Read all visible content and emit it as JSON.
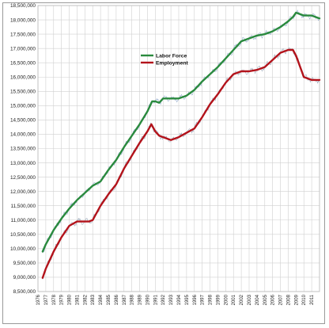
{
  "chart_data": {
    "type": "line",
    "title": "",
    "xlabel": "",
    "ylabel": "",
    "xlim": [
      1976,
      2012
    ],
    "ylim": [
      8500000,
      18500000
    ],
    "y_ticks": [
      "8,500,000",
      "9,000,000",
      "9,500,000",
      "10,000,000",
      "10,500,000",
      "11,000,000",
      "11,500,000",
      "12,000,000",
      "12,500,000",
      "13,000,000",
      "13,500,000",
      "14,000,000",
      "14,500,000",
      "15,000,000",
      "15,500,000",
      "16,000,000",
      "16,500,000",
      "17,000,000",
      "17,500,000",
      "18,000,000",
      "18,500,000"
    ],
    "x_ticks": [
      "1976",
      "1977",
      "1978",
      "1979",
      "1980",
      "1981",
      "1982",
      "1983",
      "1984",
      "1985",
      "1986",
      "1987",
      "1988",
      "1989",
      "1990",
      "1991",
      "1992",
      "1993",
      "1994",
      "1995",
      "1996",
      "1997",
      "1998",
      "1999",
      "2000",
      "2001",
      "2002",
      "2003",
      "2004",
      "2005",
      "2006",
      "2007",
      "2008",
      "2009",
      "2010",
      "2011"
    ],
    "grid": true,
    "legend_position": "upper-middle",
    "series": [
      {
        "name": "Labor Force",
        "color": "#2a8a3e",
        "x": [
          1976.6,
          1977,
          1978,
          1979,
          1980,
          1981,
          1982,
          1983,
          1984,
          1985,
          1986,
          1987,
          1988,
          1989,
          1990,
          1990.6,
          1991,
          1991.5,
          1992,
          1993,
          1994,
          1995,
          1996,
          1997,
          1998,
          1999,
          2000,
          2001,
          2002,
          2003,
          2004,
          2005,
          2006,
          2007,
          2008,
          2008.6,
          2009,
          2010,
          2011,
          2012
        ],
        "values": [
          9900000,
          10150000,
          10650000,
          11050000,
          11400000,
          11700000,
          11950000,
          12200000,
          12350000,
          12750000,
          13100000,
          13550000,
          13950000,
          14350000,
          14800000,
          15150000,
          15150000,
          15100000,
          15250000,
          15250000,
          15250000,
          15350000,
          15550000,
          15850000,
          16100000,
          16350000,
          16650000,
          16950000,
          17250000,
          17350000,
          17450000,
          17500000,
          17600000,
          17750000,
          17950000,
          18100000,
          18250000,
          18150000,
          18150000,
          18050000
        ]
      },
      {
        "name": "Employment",
        "color": "#b3131b",
        "x": [
          1976.6,
          1977,
          1978,
          1979,
          1980,
          1981,
          1982,
          1982.5,
          1983,
          1984,
          1985,
          1986,
          1987,
          1988,
          1989,
          1990,
          1990.5,
          1991,
          1991.5,
          1992,
          1993,
          1994,
          1995,
          1996,
          1997,
          1998,
          1999,
          2000,
          2001,
          2002,
          2003,
          2004,
          2005,
          2006,
          2007,
          2008,
          2008.6,
          2009,
          2010,
          2011,
          2012
        ],
        "values": [
          8980000,
          9300000,
          9900000,
          10400000,
          10800000,
          10950000,
          10950000,
          10950000,
          11000000,
          11500000,
          11900000,
          12250000,
          12800000,
          13250000,
          13700000,
          14100000,
          14350000,
          14100000,
          13950000,
          13900000,
          13800000,
          13900000,
          14050000,
          14200000,
          14600000,
          15050000,
          15400000,
          15800000,
          16100000,
          16200000,
          16200000,
          16250000,
          16350000,
          16600000,
          16850000,
          16950000,
          16950000,
          16750000,
          16000000,
          15900000,
          15900000
        ]
      }
    ]
  }
}
